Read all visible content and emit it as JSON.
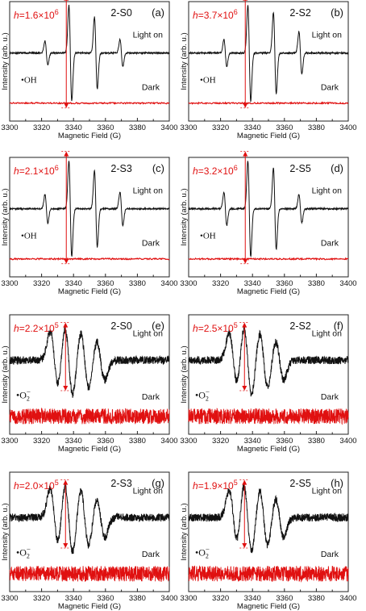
{
  "figure": {
    "colors": {
      "light": "#111111",
      "dark": "#e01010",
      "marker": "#e01010"
    }
  },
  "chart_data": [
    {
      "type": "line",
      "panel": "(a)",
      "sample": "2-S0",
      "radical": "•OH",
      "h_label": "h=1.6×10",
      "h_exp": "6",
      "light_label": "Light on",
      "dark_label": "Dark",
      "xlabel": "Magnetic Field (G)",
      "ylabel": "Intensity (arb. u.)",
      "xticks": [
        "3300",
        "3320",
        "3340",
        "3360",
        "3380",
        "3400"
      ],
      "xlim": [
        3300,
        3400
      ],
      "series": [
        {
          "name": "Light on",
          "kind": "oh",
          "peaks": [
            3323,
            3338,
            3354,
            3370
          ],
          "amps": [
            0.25,
            1.0,
            0.75,
            0.28
          ]
        },
        {
          "name": "Dark",
          "kind": "flat"
        }
      ]
    },
    {
      "type": "line",
      "panel": "(b)",
      "sample": "2-S2",
      "radical": "•OH",
      "h_label": "h=3.7×10",
      "h_exp": "6",
      "light_label": "Light on",
      "dark_label": "Dark",
      "xlabel": "Magnetic Field (G)",
      "ylabel": "Intensity (arb. u.)",
      "xticks": [
        "3300",
        "3320",
        "3340",
        "3360",
        "3380",
        "3400"
      ],
      "xlim": [
        3300,
        3400
      ],
      "series": [
        {
          "name": "Light on",
          "kind": "oh",
          "peaks": [
            3323,
            3338,
            3354,
            3370
          ],
          "amps": [
            0.28,
            1.0,
            0.85,
            0.45
          ]
        },
        {
          "name": "Dark",
          "kind": "flat"
        }
      ]
    },
    {
      "type": "line",
      "panel": "(c)",
      "sample": "2-S3",
      "radical": "•OH",
      "h_label": "h=2.1×10",
      "h_exp": "6",
      "light_label": "Light on",
      "dark_label": "Dark",
      "xlabel": "Magnetic Field (G)",
      "ylabel": "Intensity (arb. u.)",
      "xticks": [
        "3300",
        "3320",
        "3340",
        "3360",
        "3380",
        "3400"
      ],
      "xlim": [
        3300,
        3400
      ],
      "series": [
        {
          "name": "Light on",
          "kind": "oh",
          "peaks": [
            3323,
            3338,
            3354,
            3370
          ],
          "amps": [
            0.3,
            1.0,
            0.8,
            0.35
          ]
        },
        {
          "name": "Dark",
          "kind": "flat"
        }
      ]
    },
    {
      "type": "line",
      "panel": "(d)",
      "sample": "2-S5",
      "radical": "•OH",
      "h_label": "h=3.2×10",
      "h_exp": "6",
      "light_label": "Light on",
      "dark_label": "Dark",
      "xlabel": "Magnetic Field (G)",
      "ylabel": "Intensity (arb. u.)",
      "xticks": [
        "3300",
        "3320",
        "3340",
        "3360",
        "3380",
        "3400"
      ],
      "xlim": [
        3300,
        3400
      ],
      "series": [
        {
          "name": "Light on",
          "kind": "oh",
          "peaks": [
            3323,
            3338,
            3354,
            3370
          ],
          "amps": [
            0.35,
            1.0,
            0.85,
            0.3
          ]
        },
        {
          "name": "Dark",
          "kind": "flat"
        }
      ]
    },
    {
      "type": "line",
      "panel": "(e)",
      "sample": "2-S0",
      "radical": "•O2−",
      "h_label": "h=2.2×10",
      "h_exp": "5",
      "light_label": "Light on",
      "dark_label": "Dark",
      "xlabel": "Magnetic Field (G)",
      "ylabel": "Intensity (arb. u.)",
      "xticks": [
        "3300",
        "3320",
        "3340",
        "3360",
        "3380",
        "3400"
      ],
      "xlim": [
        3300,
        3400
      ],
      "series": [
        {
          "name": "Light on",
          "kind": "o2",
          "peaks": [
            3328,
            3337,
            3347,
            3357
          ],
          "amps": [
            0.8,
            1.0,
            0.8,
            0.55
          ]
        },
        {
          "name": "Dark",
          "kind": "noise"
        }
      ]
    },
    {
      "type": "line",
      "panel": "(f)",
      "sample": "2-S2",
      "radical": "•O2−",
      "h_label": "h=2.5×10",
      "h_exp": "5",
      "light_label": "Light on",
      "dark_label": "Dark",
      "xlabel": "Magnetic Field (G)",
      "ylabel": "Intensity (arb. u.)",
      "xticks": [
        "3300",
        "3320",
        "3340",
        "3360",
        "3380",
        "3400"
      ],
      "xlim": [
        3300,
        3400
      ],
      "series": [
        {
          "name": "Light on",
          "kind": "o2",
          "peaks": [
            3328,
            3337,
            3347,
            3357
          ],
          "amps": [
            0.75,
            1.0,
            0.8,
            0.55
          ]
        },
        {
          "name": "Dark",
          "kind": "noise"
        }
      ]
    },
    {
      "type": "line",
      "panel": "(g)",
      "sample": "2-S3",
      "radical": "•O2−",
      "h_label": "h=2.0×10",
      "h_exp": "5",
      "light_label": "Light on",
      "dark_label": "Dark",
      "xlabel": "Magnetic Field (G)",
      "ylabel": "Intensity (arb. u.)",
      "xticks": [
        "3300",
        "3320",
        "3340",
        "3360",
        "3380",
        "3400"
      ],
      "xlim": [
        3300,
        3400
      ],
      "series": [
        {
          "name": "Light on",
          "kind": "o2",
          "peaks": [
            3328,
            3337,
            3347,
            3357
          ],
          "amps": [
            0.8,
            1.0,
            0.8,
            0.55
          ]
        },
        {
          "name": "Dark",
          "kind": "noise"
        }
      ]
    },
    {
      "type": "line",
      "panel": "(h)",
      "sample": "2-S5",
      "radical": "•O2−",
      "h_label": "h=1.9×10",
      "h_exp": "5",
      "light_label": "Light on",
      "dark_label": "Dark",
      "xlabel": "Magnetic Field (G)",
      "ylabel": "Intensity (arb. u.)",
      "xticks": [
        "3300",
        "3320",
        "3340",
        "3360",
        "3380",
        "3400"
      ],
      "xlim": [
        3300,
        3400
      ],
      "series": [
        {
          "name": "Light on",
          "kind": "o2",
          "peaks": [
            3328,
            3337,
            3347,
            3357
          ],
          "amps": [
            0.75,
            1.0,
            0.8,
            0.55
          ]
        },
        {
          "name": "Dark",
          "kind": "noise"
        }
      ]
    }
  ]
}
